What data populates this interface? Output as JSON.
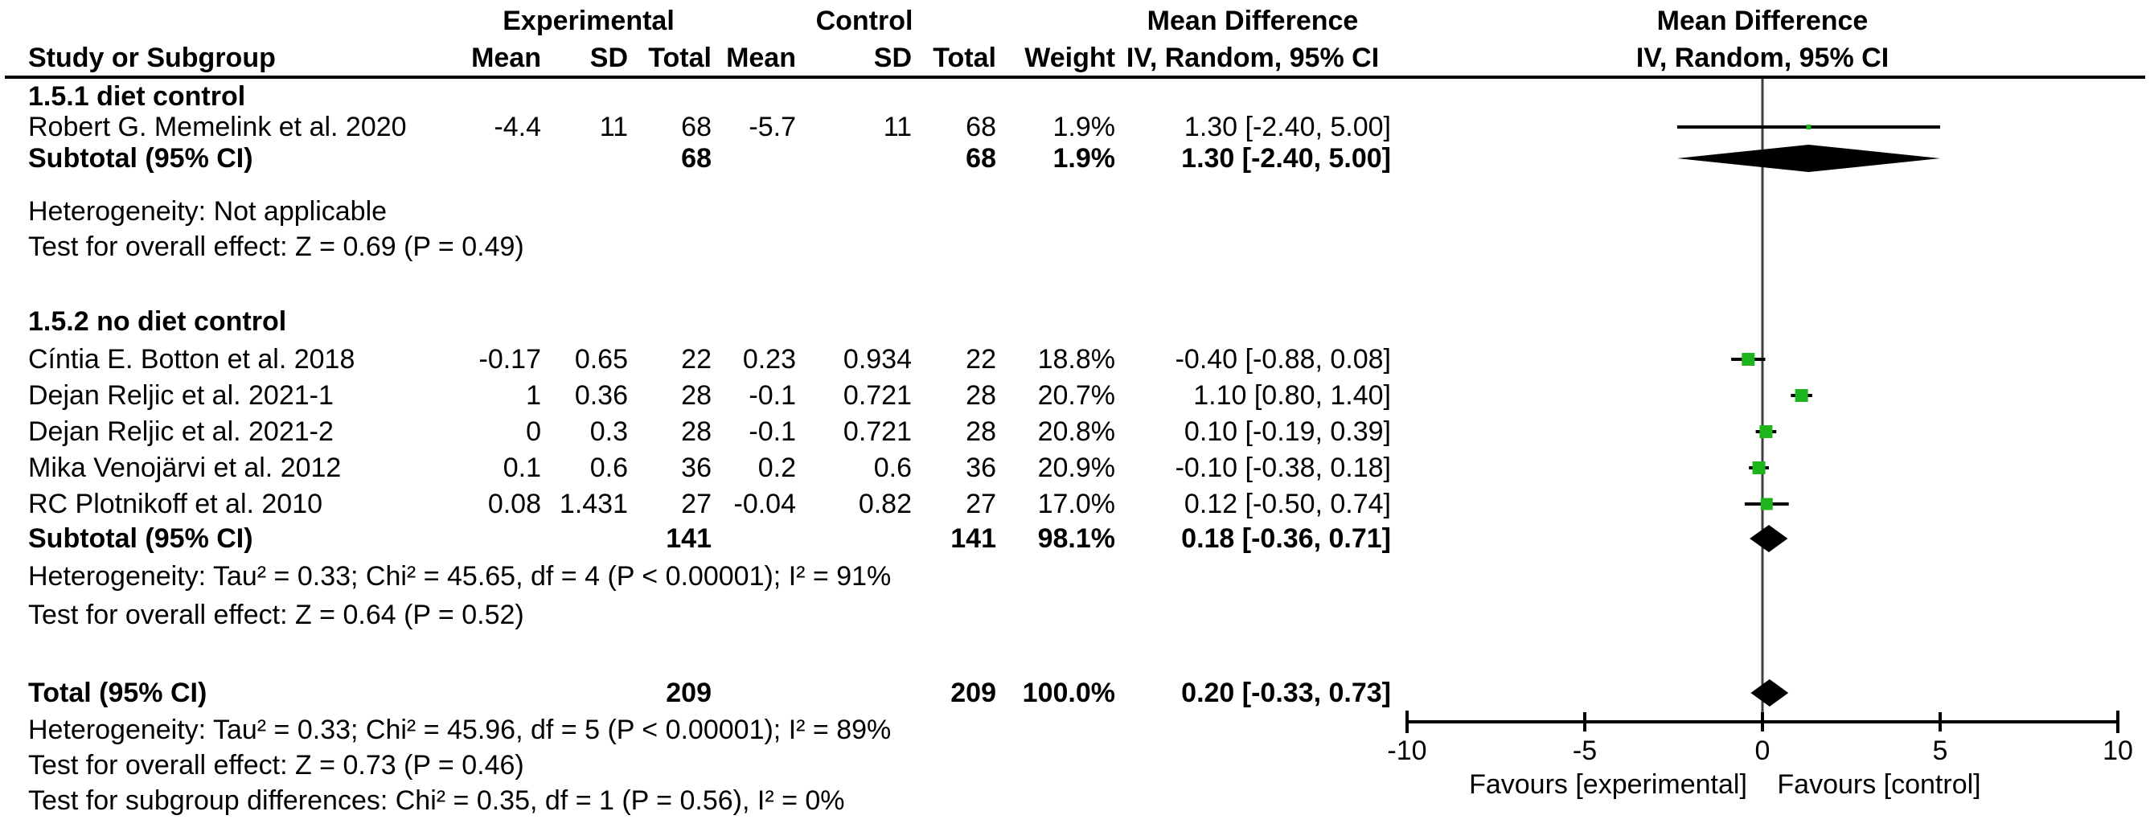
{
  "chart_data": {
    "type": "forest-plot",
    "effect_measure": "Mean Difference",
    "method": "IV, Random, 95% CI",
    "headers": {
      "study": "Study or Subgroup",
      "experimental": "Experimental",
      "control": "Control",
      "mean": "Mean",
      "sd": "SD",
      "total": "Total",
      "weight": "Weight",
      "md_text": "Mean Difference",
      "ci_method": "IV, Random, 95% CI",
      "md_plot": "Mean Difference",
      "ci_method_plot": "IV, Random, 95% CI"
    },
    "rows": [
      {
        "kind": "subgroup",
        "label": "1.5.1 diet control"
      },
      {
        "kind": "study",
        "label": "Robert G. Memelink et al. 2020",
        "mean_e": "-4.4",
        "sd_e": "11",
        "total_e": "68",
        "mean_c": "-5.7",
        "sd_c": "11",
        "total_c": "68",
        "weight": "1.9%",
        "ci_text": "1.30 [-2.40, 5.00]",
        "est": 1.3,
        "lo": -2.4,
        "hi": 5.0,
        "weight_pct": 1.9
      },
      {
        "kind": "subtotal",
        "label": "Subtotal (95% CI)",
        "total_e": "68",
        "total_c": "68",
        "weight": "1.9%",
        "ci_text": "1.30 [-2.40, 5.00]",
        "est": 1.3,
        "lo": -2.4,
        "hi": 5.0
      },
      {
        "kind": "stat",
        "label": "Heterogeneity: Not applicable"
      },
      {
        "kind": "stat",
        "label": "Test for overall effect: Z = 0.69 (P = 0.49)"
      },
      {
        "kind": "subgroup",
        "label": "1.5.2 no diet control"
      },
      {
        "kind": "study",
        "label": "Cíntia E. Botton et al. 2018",
        "mean_e": "-0.17",
        "sd_e": "0.65",
        "total_e": "22",
        "mean_c": "0.23",
        "sd_c": "0.934",
        "total_c": "22",
        "weight": "18.8%",
        "ci_text": "-0.40 [-0.88, 0.08]",
        "est": -0.4,
        "lo": -0.88,
        "hi": 0.08,
        "weight_pct": 18.8
      },
      {
        "kind": "study",
        "label": "Dejan Reljic et al. 2021-1",
        "mean_e": "1",
        "sd_e": "0.36",
        "total_e": "28",
        "mean_c": "-0.1",
        "sd_c": "0.721",
        "total_c": "28",
        "weight": "20.7%",
        "ci_text": "1.10 [0.80, 1.40]",
        "est": 1.1,
        "lo": 0.8,
        "hi": 1.4,
        "weight_pct": 20.7
      },
      {
        "kind": "study",
        "label": "Dejan Reljic et al. 2021-2",
        "mean_e": "0",
        "sd_e": "0.3",
        "total_e": "28",
        "mean_c": "-0.1",
        "sd_c": "0.721",
        "total_c": "28",
        "weight": "20.8%",
        "ci_text": "0.10 [-0.19, 0.39]",
        "est": 0.1,
        "lo": -0.19,
        "hi": 0.39,
        "weight_pct": 20.8
      },
      {
        "kind": "study",
        "label": "Mika Venojärvi et al. 2012",
        "mean_e": "0.1",
        "sd_e": "0.6",
        "total_e": "36",
        "mean_c": "0.2",
        "sd_c": "0.6",
        "total_c": "36",
        "weight": "20.9%",
        "ci_text": "-0.10 [-0.38, 0.18]",
        "est": -0.1,
        "lo": -0.38,
        "hi": 0.18,
        "weight_pct": 20.9
      },
      {
        "kind": "study",
        "label": "RC Plotnikoff et al. 2010",
        "mean_e": "0.08",
        "sd_e": "1.431",
        "total_e": "27",
        "mean_c": "-0.04",
        "sd_c": "0.82",
        "total_c": "27",
        "weight": "17.0%",
        "ci_text": "0.12 [-0.50, 0.74]",
        "est": 0.12,
        "lo": -0.5,
        "hi": 0.74,
        "weight_pct": 17.0
      },
      {
        "kind": "subtotal",
        "label": "Subtotal (95% CI)",
        "total_e": "141",
        "total_c": "141",
        "weight": "98.1%",
        "ci_text": "0.18 [-0.36, 0.71]",
        "est": 0.18,
        "lo": -0.36,
        "hi": 0.71
      },
      {
        "kind": "stat",
        "label": "Heterogeneity: Tau² = 0.33; Chi² = 45.65, df = 4 (P < 0.00001); I² = 91%"
      },
      {
        "kind": "stat",
        "label": "Test for overall effect: Z = 0.64 (P = 0.52)"
      },
      {
        "kind": "total",
        "label": "Total (95% CI)",
        "total_e": "209",
        "total_c": "209",
        "weight": "100.0%",
        "ci_text": "0.20 [-0.33, 0.73]",
        "est": 0.2,
        "lo": -0.33,
        "hi": 0.73
      },
      {
        "kind": "stat",
        "label": "Heterogeneity: Tau² = 0.33; Chi² = 45.96, df = 5 (P < 0.00001); I² = 89%"
      },
      {
        "kind": "stat",
        "label": "Test for overall effect: Z = 0.73 (P = 0.46)"
      },
      {
        "kind": "stat",
        "label": "Test for subgroup differences: Chi² = 0.35, df = 1 (P = 0.56), I² = 0%"
      }
    ],
    "axis": {
      "min": -10,
      "max": 10,
      "ticks": [
        -10,
        -5,
        0,
        5,
        10
      ],
      "tick_labels": [
        "-10",
        "-5",
        "0",
        "5",
        "10"
      ],
      "favours_left": "Favours [experimental]",
      "favours_right": "Favours [control]"
    },
    "colors": {
      "marker": "#1eb41e",
      "diamond": "#000000",
      "ci_line": "#000000",
      "zero_line": "#3f3f3f",
      "text": "#000000"
    }
  }
}
